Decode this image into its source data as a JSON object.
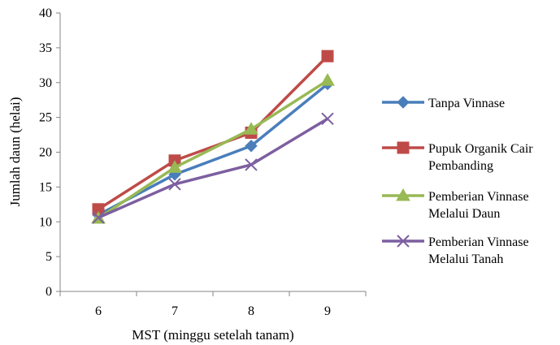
{
  "chart_data": {
    "type": "line",
    "title": "",
    "xlabel": "MST (minggu setelah tanam)",
    "ylabel": "Jumlah daun (helai)",
    "categories": [
      "6",
      "7",
      "8",
      "9"
    ],
    "ylim": [
      0,
      40
    ],
    "yticks": [
      0,
      5,
      10,
      15,
      20,
      25,
      30,
      35,
      40
    ],
    "grid": false,
    "legend_position": "right",
    "series": [
      {
        "name": "Tanpa Vinnase",
        "name_lines": [
          "Tanpa Vinnase"
        ],
        "color": "#4a7ebb",
        "marker": "diamond",
        "values": [
          11.0,
          16.8,
          20.9,
          29.8
        ]
      },
      {
        "name": "Pupuk Organik Cair Pembanding",
        "name_lines": [
          "Pupuk Organik Cair",
          "Pembanding"
        ],
        "color": "#be4b48",
        "marker": "square",
        "values": [
          11.8,
          18.8,
          22.8,
          33.8
        ]
      },
      {
        "name": "Pemberian Vinnase Melalui Daun",
        "name_lines": [
          "Pemberian Vinnase",
          "Melalui Daun"
        ],
        "color": "#98b954",
        "marker": "triangle",
        "values": [
          10.5,
          17.8,
          23.3,
          30.3
        ]
      },
      {
        "name": "Pemberian Vinnase Melalui Tanah",
        "name_lines": [
          "Pemberian Vinnase",
          "Melalui Tanah"
        ],
        "color": "#7d5fa0",
        "marker": "x",
        "values": [
          10.6,
          15.4,
          18.2,
          24.8
        ]
      }
    ]
  }
}
